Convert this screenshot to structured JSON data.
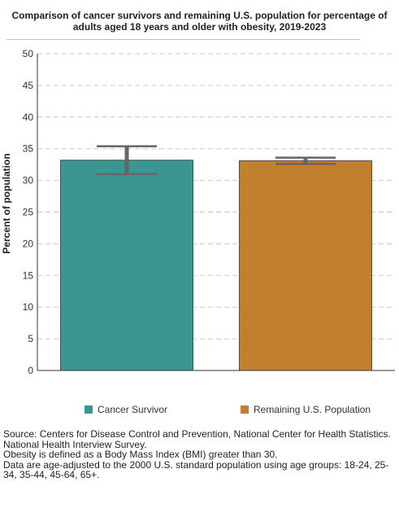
{
  "chart_data": {
    "type": "bar",
    "title": "Comparison of cancer survivors and remaining U.S. population for percentage of adults aged 18 years and older with obesity, 2019-2023",
    "ylabel": "Percent of population",
    "xlabel": "",
    "ylim": [
      0,
      50
    ],
    "yticks": [
      "0",
      "5",
      "10",
      "15",
      "20",
      "25",
      "30",
      "35",
      "40",
      "45",
      "50"
    ],
    "grid": true,
    "legend_position": "bottom",
    "series": [
      {
        "name": "Cancer Survivor",
        "value": 33.2,
        "error_low": 31.0,
        "error_high": 35.4,
        "color": "#3a9690"
      },
      {
        "name": "Remaining U.S. Population",
        "value": 33.1,
        "error_low": 32.6,
        "error_high": 33.6,
        "color": "#c0802e"
      }
    ]
  },
  "notes": [
    "Source: Centers for Disease Control and Prevention, National Center for Health Statistics. National Health Interview Survey.",
    "Obesity is defined as a Body Mass Index (BMI) greater than 30.",
    "Data are age-adjusted to the 2000 U.S. standard population using age groups: 18-24, 25-34, 35-44, 45-64, 65+."
  ]
}
